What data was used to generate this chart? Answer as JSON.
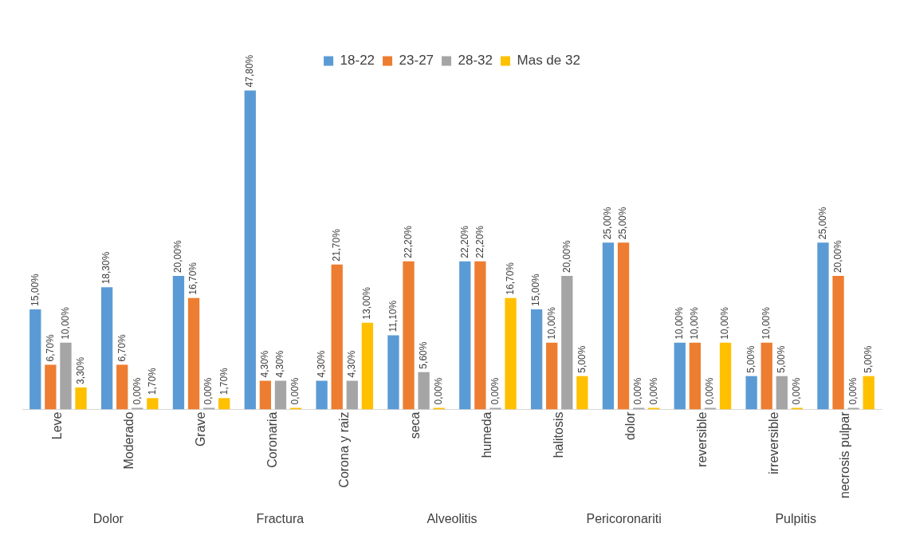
{
  "chart_data": {
    "type": "bar",
    "categories": [
      "Leve",
      "Moderado",
      "Grave",
      "Coronaria",
      "Corona y raiz",
      "seca",
      "humeda",
      "halitosis",
      "dolor",
      "reversible",
      "irreversible",
      "necrosis pulpar"
    ],
    "series": [
      {
        "name": "18-22",
        "color": "#5b9bd5",
        "values": [
          15,
          18.3,
          20,
          47.8,
          4.3,
          11.1,
          22.2,
          15,
          25,
          10,
          5,
          25
        ],
        "value_labels": [
          "15,00%",
          "18,30%",
          "20,00%",
          "47,80%",
          "4,30%",
          "11,10%",
          "22,20%",
          "15,00%",
          "25,00%",
          "10,00%",
          "5,00%",
          "25,00%"
        ]
      },
      {
        "name": "23-27",
        "color": "#ed7d31",
        "values": [
          6.7,
          6.7,
          16.7,
          4.3,
          21.7,
          22.2,
          22.2,
          10,
          25,
          10,
          10,
          20
        ],
        "value_labels": [
          "6,70%",
          "6,70%",
          "16,70%",
          "4,30%",
          "21,70%",
          "22,20%",
          "22,20%",
          "10,00%",
          "25,00%",
          "10,00%",
          "10,00%",
          "20,00%"
        ]
      },
      {
        "name": "28-32",
        "color": "#a5a5a5",
        "values": [
          10,
          0,
          0,
          4.3,
          4.3,
          5.6,
          0,
          20,
          0,
          0,
          5,
          0
        ],
        "value_labels": [
          "10,00%",
          "0,00%",
          "0,00%",
          "4,30%",
          "4,30%",
          "5,60%",
          "0,00%",
          "20,00%",
          "0,00%",
          "0,00%",
          "5,00%",
          "0,00%"
        ]
      },
      {
        "name": "Mas de 32",
        "color": "#ffc000",
        "values": [
          3.3,
          1.7,
          1.7,
          0,
          13,
          0,
          16.7,
          5,
          0,
          10,
          0,
          5
        ],
        "value_labels": [
          "3,30%",
          "1,70%",
          "1,70%",
          "0,00%",
          "13,00%",
          "0,00%",
          "16,70%",
          "5,00%",
          "0,00%",
          "10,00%",
          "0,00%",
          "5,00%"
        ]
      }
    ],
    "annotations": [
      "Dolor",
      "Fractura",
      "Alveolitis",
      "Pericoronariti",
      "Pulpitis"
    ],
    "legend": "top",
    "grid": false
  }
}
